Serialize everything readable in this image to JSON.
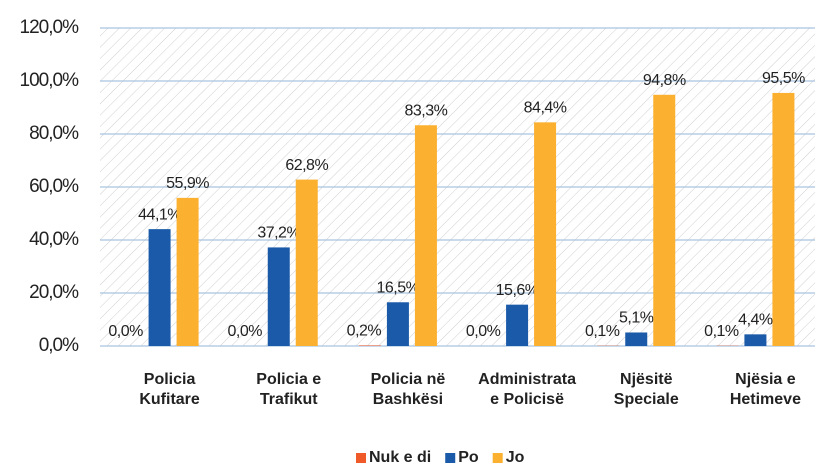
{
  "chart_data": {
    "type": "bar",
    "categories": [
      [
        "Policia",
        "Kufitare"
      ],
      [
        "Policia e",
        "Trafikut"
      ],
      [
        "Policia në",
        "Bashkësi"
      ],
      [
        "Administrata",
        "e Policisë"
      ],
      [
        "Njësitë",
        "Speciale"
      ],
      [
        "Njësia e",
        "Hetimeve"
      ]
    ],
    "series": [
      {
        "name": "Nuk e di",
        "color": "#f05a28",
        "values": [
          0,
          0,
          0.2,
          0,
          0.1,
          0.1
        ],
        "value_labels": [
          "0,0%",
          "0,0%",
          "0,2%",
          "0,0%",
          "0,1%",
          "0,1%"
        ]
      },
      {
        "name": "Po",
        "color": "#1a5aa8",
        "values": [
          44.1,
          37.2,
          16.5,
          15.6,
          5.1,
          4.4
        ],
        "value_labels": [
          "44,1%",
          "37,2%",
          "16,5%",
          "15,6%",
          "5,1%",
          "4,4%"
        ]
      },
      {
        "name": "Jo",
        "color": "#fbb030",
        "values": [
          55.9,
          62.8,
          83.3,
          84.4,
          94.8,
          95.5
        ],
        "value_labels": [
          "55,9%",
          "62,8%",
          "83,3%",
          "84,4%",
          "94,8%",
          "95,5%"
        ]
      }
    ],
    "ylim": [
      0,
      120
    ],
    "yticks": [
      {
        "value": 0,
        "label": "0,0%"
      },
      {
        "value": 20,
        "label": "20,0%"
      },
      {
        "value": 40,
        "label": "40,0%"
      },
      {
        "value": 60,
        "label": "60,0%"
      },
      {
        "value": 80,
        "label": "80,0%"
      },
      {
        "value": 100,
        "label": "100,0%"
      },
      {
        "value": 120,
        "label": "120,0%"
      }
    ],
    "grid": true,
    "legend": "bottom"
  }
}
